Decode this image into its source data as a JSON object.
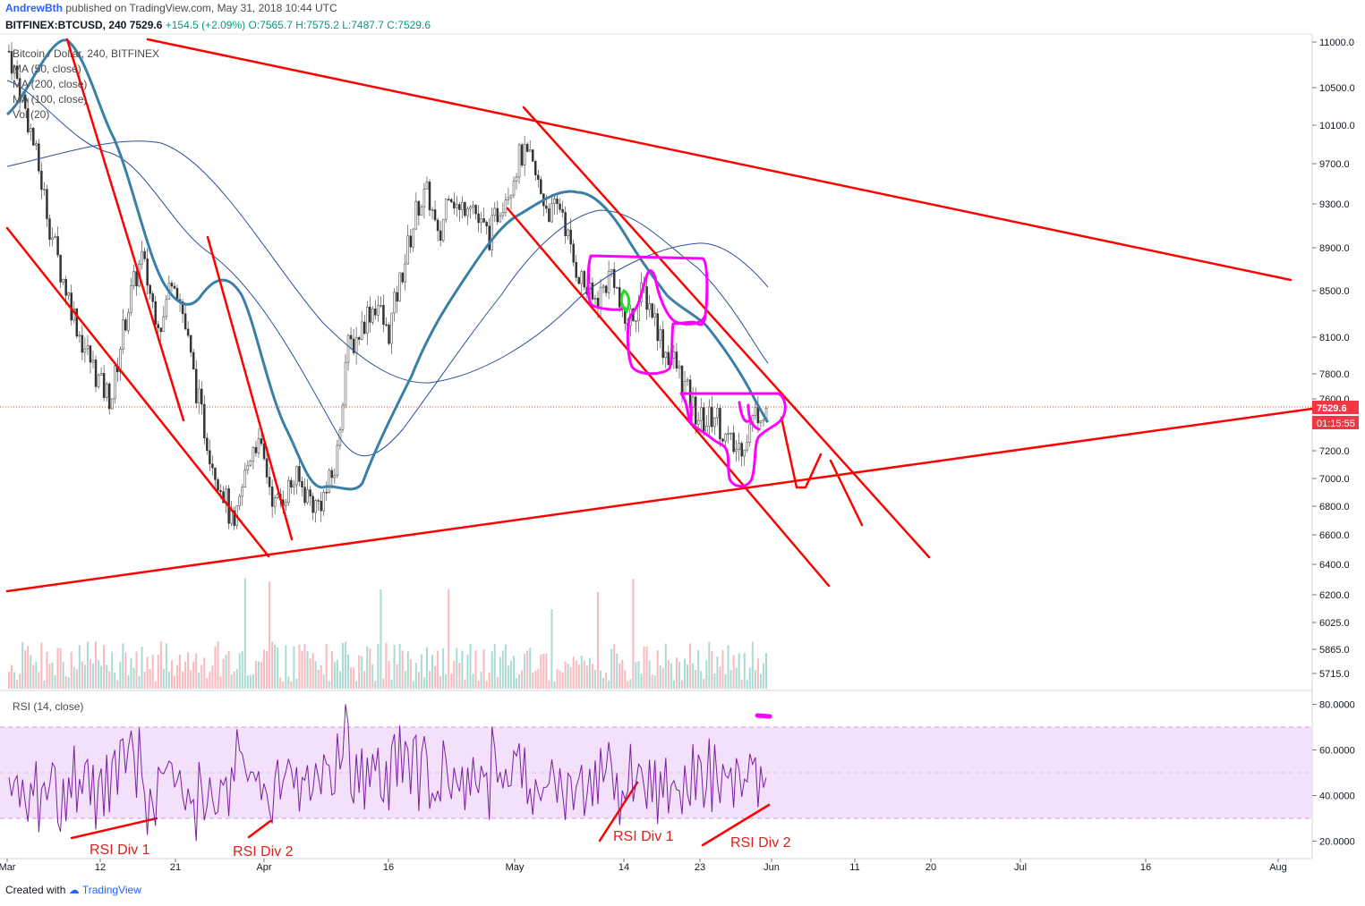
{
  "header": {
    "author": "AndrewBth",
    "published": "published on TradingView.com, May 31, 2018 10:44 UTC",
    "symbol": "BITFINEX:BTCUSD, 240",
    "last": "7529.6",
    "change": "+154.5 (+2.09%)",
    "ohlc": "O:7565.7 H:7575.2 L:7487.7 C:7529.6"
  },
  "legend": {
    "title": "Bitcoin / Dollar, 240, BITFINEX",
    "ma50": "MA (50, close)",
    "ma200": "MA (200, close)",
    "ma100": "MA (100, close)",
    "vol": "Vol (20)"
  },
  "price_badge": "7529.6",
  "countdown_badge": "01:15:55",
  "rsi_title": "RSI (14, close)",
  "footer": {
    "created_with": "Created with",
    "brand": "TradingView"
  },
  "annotations": {
    "rsi_div1_a": "RSI Div 1",
    "rsi_div2_a": "RSI Div 2",
    "rsi_div1_b": "RSI Div 1",
    "rsi_div2_b": "RSI Div 2"
  },
  "colors": {
    "up": "#089981",
    "down": "#f23645",
    "trendline": "#ff0000",
    "highlight": "#ff00ff",
    "ma_thick": "#3a7fa8",
    "ma_thin": "#2b4f9a",
    "rsi": "#7b1fa2",
    "rsi_band": "#f3e0fa"
  },
  "chart_data": {
    "type": "candlestick",
    "symbol": "BITFINEX:BTCUSD",
    "interval": "240",
    "price_axis": {
      "ticks": [
        11000.0,
        10500.0,
        10100.0,
        9700.0,
        9300.0,
        8900.0,
        8500.0,
        8100.0,
        7800.0,
        7600.0,
        7200.0,
        7000.0,
        6800.0,
        6600.0,
        6400.0,
        6200.0,
        6025.0,
        5865.0,
        5715.0
      ],
      "tick_labels": [
        "11000.0",
        "10500.0",
        "10100.0",
        "9700.0",
        "9300.0",
        "8900.0",
        "8500.0",
        "8100.0",
        "7800.0",
        "7600.0",
        "7200.0",
        "7000.0",
        "6800.0",
        "6600.0",
        "6400.0",
        "6200.0",
        "6025.0",
        "5865.0",
        "5715.0"
      ]
    },
    "rsi_axis": {
      "ticks": [
        80,
        60,
        40,
        20
      ],
      "tick_labels": [
        "80.0000",
        "60.0000",
        "40.0000",
        "20.0000"
      ],
      "band": [
        30,
        70
      ]
    },
    "time_axis": {
      "labels": [
        "Mar",
        "12",
        "21",
        "Apr",
        "16",
        "May",
        "14",
        "23",
        "Jun",
        "11",
        "20",
        "Jul",
        "16",
        "Aug"
      ]
    },
    "approx_closes_4h_sampled": [
      10900,
      10500,
      10100,
      9600,
      9100,
      8700,
      8400,
      8100,
      7900,
      7700,
      7600,
      8100,
      8500,
      8800,
      8400,
      8200,
      8700,
      8300,
      7800,
      7400,
      7100,
      6900,
      6600,
      7000,
      7300,
      7100,
      6800,
      6900,
      7000,
      6900,
      6800,
      6900,
      7100,
      8000,
      8100,
      8300,
      8400,
      8100,
      8500,
      8900,
      9300,
      9400,
      8900,
      9500,
      9200,
      9400,
      9100,
      9000,
      9300,
      9500,
      9800,
      9700,
      9400,
      9200,
      9300,
      8800,
      8600,
      8400,
      8500,
      8700,
      8200,
      8300,
      8500,
      8300,
      8000,
      7900,
      7700,
      7500,
      7400,
      7500,
      7300,
      7200,
      7300,
      7500,
      7529.6
    ]
  }
}
